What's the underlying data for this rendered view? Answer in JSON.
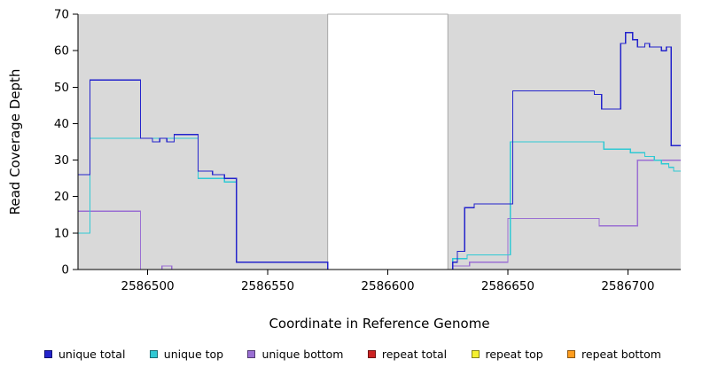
{
  "chart_data": {
    "type": "line",
    "step": true,
    "title": "",
    "xlabel": "Coordinate in Reference Genome",
    "ylabel": "Read Coverage Depth",
    "xlim": [
      2586471,
      2586722
    ],
    "ylim": [
      0,
      70
    ],
    "xticks": [
      2586500,
      2586550,
      2586600,
      2586650,
      2586700
    ],
    "yticks": [
      0,
      10,
      20,
      30,
      40,
      50,
      60,
      70
    ],
    "plot_background": "#d9d9d9",
    "figure_background": "#ffffff",
    "grid": false,
    "gap_region": {
      "from": 2586575,
      "to": 2586625,
      "color": "#ffffff"
    },
    "legend_position": "bottom",
    "legend": [
      {
        "label": "unique total",
        "color": "#2424cc"
      },
      {
        "label": "unique top",
        "color": "#30c9d4"
      },
      {
        "label": "unique bottom",
        "color": "#9a6fd3"
      },
      {
        "label": "repeat total",
        "color": "#cc2222"
      },
      {
        "label": "repeat top",
        "color": "#f5f02e"
      },
      {
        "label": "repeat bottom",
        "color": "#ff9d1e"
      }
    ],
    "series": [
      {
        "name": "unique bottom",
        "color": "#9a6fd3",
        "segments": [
          [
            [
              2586471,
              16
            ],
            [
              2586497,
              0
            ],
            [
              2586506,
              1
            ],
            [
              2586510,
              0
            ],
            [
              2586627,
              1
            ],
            [
              2586634,
              2
            ],
            [
              2586650,
              14
            ],
            [
              2586688,
              12
            ],
            [
              2586704,
              30
            ],
            [
              2586722,
              30
            ]
          ]
        ]
      },
      {
        "name": "unique top",
        "color": "#30c9d4",
        "segments": [
          [
            [
              2586471,
              10
            ],
            [
              2586476,
              36
            ],
            [
              2586521,
              25
            ],
            [
              2586532,
              24
            ],
            [
              2586537,
              2
            ],
            [
              2586575,
              0
            ],
            [
              2586627,
              3
            ],
            [
              2586633,
              4
            ],
            [
              2586651,
              35
            ],
            [
              2586690,
              33
            ],
            [
              2586701,
              32
            ],
            [
              2586707,
              31
            ],
            [
              2586711,
              30
            ],
            [
              2586714,
              29
            ],
            [
              2586717,
              28
            ],
            [
              2586719,
              27
            ],
            [
              2586722,
              27
            ]
          ]
        ]
      },
      {
        "name": "unique total",
        "color": "#2424cc",
        "segments": [
          [
            [
              2586471,
              26
            ],
            [
              2586476,
              52
            ],
            [
              2586497,
              36
            ],
            [
              2586502,
              35
            ],
            [
              2586505,
              36
            ],
            [
              2586508,
              35
            ],
            [
              2586511,
              37
            ],
            [
              2586521,
              27
            ],
            [
              2586527,
              26
            ],
            [
              2586532,
              25
            ],
            [
              2586537,
              2
            ],
            [
              2586575,
              0
            ],
            [
              2586627,
              2
            ],
            [
              2586629,
              5
            ],
            [
              2586632,
              17
            ],
            [
              2586636,
              18
            ],
            [
              2586652,
              49
            ],
            [
              2586686,
              48
            ],
            [
              2586689,
              44
            ],
            [
              2586697,
              62
            ],
            [
              2586699,
              65
            ],
            [
              2586702,
              63
            ],
            [
              2586704,
              61
            ],
            [
              2586707,
              62
            ],
            [
              2586709,
              61
            ],
            [
              2586714,
              60
            ],
            [
              2586716,
              61
            ],
            [
              2586718,
              34
            ],
            [
              2586722,
              34
            ]
          ]
        ]
      },
      {
        "name": "repeat total",
        "color": "#cc2222",
        "segments": [
          [
            [
              2586471,
              0
            ],
            [
              2586575,
              0
            ]
          ],
          [
            [
              2586625,
              0
            ],
            [
              2586722,
              0
            ]
          ]
        ]
      },
      {
        "name": "repeat top",
        "color": "#f5f02e",
        "segments": [
          [
            [
              2586471,
              0
            ],
            [
              2586575,
              0
            ]
          ],
          [
            [
              2586625,
              0
            ],
            [
              2586722,
              0
            ]
          ]
        ]
      },
      {
        "name": "repeat bottom",
        "color": "#ff9d1e",
        "segments": [
          [
            [
              2586471,
              0
            ],
            [
              2586575,
              0
            ]
          ],
          [
            [
              2586625,
              0
            ],
            [
              2586722,
              0
            ]
          ]
        ]
      }
    ]
  }
}
